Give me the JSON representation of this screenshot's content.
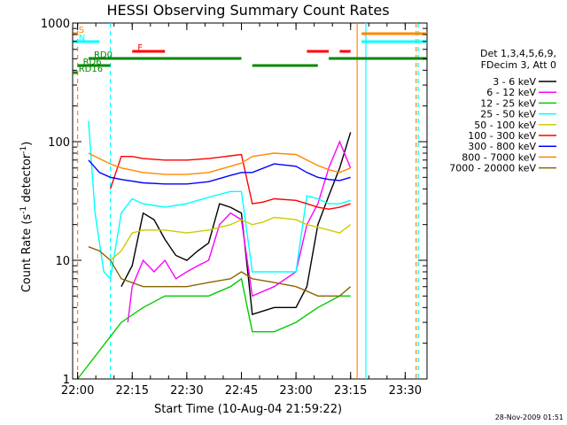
{
  "chart_data": {
    "type": "line",
    "title": "HESSI Observing Summary Count Rates",
    "xlabel": "Start Time (10-Aug-04 21:59:22)",
    "ylabel": "Count Rate (s",
    "ylabel_sup": "-1",
    "ylabel_tail": " detector",
    "ylabel_tail_sup": "-1",
    "ylabel_close": ")",
    "y_scale": "log",
    "ylim": [
      1,
      1000
    ],
    "xlim": [
      21.9772,
      23.6
    ],
    "x_ticks": [
      {
        "t": 22.0,
        "label": "22:00"
      },
      {
        "t": 22.25,
        "label": "22:15"
      },
      {
        "t": 22.5,
        "label": "22:30"
      },
      {
        "t": 22.75,
        "label": "22:45"
      },
      {
        "t": 23.0,
        "label": "23:00"
      },
      {
        "t": 23.25,
        "label": "23:15"
      },
      {
        "t": 23.5,
        "label": "23:30"
      }
    ],
    "y_ticks": [
      {
        "v": 1,
        "label": "1"
      },
      {
        "v": 10,
        "label": "10"
      },
      {
        "v": 100,
        "label": "100"
      },
      {
        "v": 1000,
        "label": "1000"
      }
    ],
    "legend_header": [
      "Det 1,3,4,5,6,9,",
      "FDecim 3, Att 0"
    ],
    "legend_placement": "right",
    "footer": "28-Nov-2009 01:51",
    "series": [
      {
        "name": "3 - 6 keV",
        "color": "#000000",
        "points": [
          [
            22.2,
            6
          ],
          [
            22.25,
            9
          ],
          [
            22.3,
            25
          ],
          [
            22.35,
            22
          ],
          [
            22.4,
            15
          ],
          [
            22.45,
            11
          ],
          [
            22.5,
            10
          ],
          [
            22.55,
            12
          ],
          [
            22.6,
            14
          ],
          [
            22.65,
            30
          ],
          [
            22.7,
            28
          ],
          [
            22.75,
            25
          ],
          [
            22.8,
            3.5
          ],
          [
            22.9,
            4
          ],
          [
            23.0,
            4
          ],
          [
            23.05,
            6
          ],
          [
            23.1,
            20
          ],
          [
            23.15,
            35
          ],
          [
            23.2,
            60
          ],
          [
            23.25,
            120
          ]
        ]
      },
      {
        "name": "6 - 12 keV",
        "color": "#ff00ff",
        "points": [
          [
            22.23,
            3
          ],
          [
            22.25,
            6
          ],
          [
            22.3,
            10
          ],
          [
            22.35,
            8
          ],
          [
            22.4,
            10
          ],
          [
            22.45,
            7
          ],
          [
            22.5,
            8
          ],
          [
            22.55,
            9
          ],
          [
            22.6,
            10
          ],
          [
            22.65,
            20
          ],
          [
            22.7,
            25
          ],
          [
            22.75,
            22
          ],
          [
            22.8,
            5
          ],
          [
            22.9,
            6
          ],
          [
            23.0,
            8
          ],
          [
            23.05,
            20
          ],
          [
            23.1,
            30
          ],
          [
            23.15,
            60
          ],
          [
            23.2,
            100
          ],
          [
            23.25,
            60
          ]
        ]
      },
      {
        "name": "12 - 25 keV",
        "color": "#00cc00",
        "points": [
          [
            22.0,
            1
          ],
          [
            22.2,
            3
          ],
          [
            22.3,
            4
          ],
          [
            22.4,
            5
          ],
          [
            22.5,
            5
          ],
          [
            22.6,
            5
          ],
          [
            22.7,
            6
          ],
          [
            22.75,
            7
          ],
          [
            22.8,
            2.5
          ],
          [
            22.9,
            2.5
          ],
          [
            23.0,
            3
          ],
          [
            23.1,
            4
          ],
          [
            23.2,
            5
          ],
          [
            23.25,
            5
          ]
        ]
      },
      {
        "name": "25 - 50 keV",
        "color": "#00ffff",
        "points": [
          [
            22.05,
            150
          ],
          [
            22.08,
            25
          ],
          [
            22.12,
            8
          ],
          [
            22.15,
            7
          ],
          [
            22.2,
            25
          ],
          [
            22.25,
            33
          ],
          [
            22.3,
            30
          ],
          [
            22.35,
            29
          ],
          [
            22.4,
            28
          ],
          [
            22.45,
            29
          ],
          [
            22.5,
            30
          ],
          [
            22.55,
            32
          ],
          [
            22.6,
            34
          ],
          [
            22.65,
            36
          ],
          [
            22.7,
            38
          ],
          [
            22.75,
            38
          ],
          [
            22.8,
            8
          ],
          [
            22.9,
            8
          ],
          [
            23.0,
            8
          ],
          [
            23.05,
            35
          ],
          [
            23.1,
            33
          ],
          [
            23.15,
            30
          ],
          [
            23.2,
            30
          ],
          [
            23.25,
            32
          ]
        ]
      },
      {
        "name": "50 - 100 keV",
        "color": "#cccc00",
        "points": [
          [
            22.15,
            10
          ],
          [
            22.2,
            12
          ],
          [
            22.25,
            17
          ],
          [
            22.3,
            18
          ],
          [
            22.4,
            18
          ],
          [
            22.5,
            17
          ],
          [
            22.6,
            18
          ],
          [
            22.7,
            20
          ],
          [
            22.75,
            22
          ],
          [
            22.8,
            20
          ],
          [
            22.85,
            21
          ],
          [
            22.9,
            23
          ],
          [
            23.0,
            22
          ],
          [
            23.05,
            20
          ],
          [
            23.1,
            19
          ],
          [
            23.15,
            18
          ],
          [
            23.2,
            17
          ],
          [
            23.25,
            20
          ]
        ]
      },
      {
        "name": "100 - 300 keV",
        "color": "#ff0000",
        "points": [
          [
            22.15,
            40
          ],
          [
            22.2,
            75
          ],
          [
            22.25,
            75
          ],
          [
            22.3,
            72
          ],
          [
            22.4,
            70
          ],
          [
            22.5,
            70
          ],
          [
            22.6,
            72
          ],
          [
            22.7,
            76
          ],
          [
            22.75,
            78
          ],
          [
            22.8,
            30
          ],
          [
            22.85,
            31
          ],
          [
            22.9,
            33
          ],
          [
            23.0,
            32
          ],
          [
            23.05,
            30
          ],
          [
            23.1,
            28
          ],
          [
            23.15,
            27
          ],
          [
            23.2,
            28
          ],
          [
            23.25,
            30
          ]
        ]
      },
      {
        "name": "300 - 800 keV",
        "color": "#0000ff",
        "points": [
          [
            22.05,
            70
          ],
          [
            22.1,
            55
          ],
          [
            22.15,
            50
          ],
          [
            22.2,
            48
          ],
          [
            22.3,
            45
          ],
          [
            22.4,
            44
          ],
          [
            22.5,
            44
          ],
          [
            22.6,
            46
          ],
          [
            22.7,
            52
          ],
          [
            22.75,
            55
          ],
          [
            22.8,
            55
          ],
          [
            22.9,
            65
          ],
          [
            23.0,
            62
          ],
          [
            23.05,
            55
          ],
          [
            23.1,
            50
          ],
          [
            23.15,
            48
          ],
          [
            23.2,
            47
          ],
          [
            23.25,
            50
          ]
        ]
      },
      {
        "name": "800 - 7000 keV",
        "color": "#ff8800",
        "points": [
          [
            22.05,
            80
          ],
          [
            22.1,
            72
          ],
          [
            22.15,
            65
          ],
          [
            22.2,
            60
          ],
          [
            22.3,
            55
          ],
          [
            22.4,
            53
          ],
          [
            22.5,
            53
          ],
          [
            22.6,
            55
          ],
          [
            22.7,
            62
          ],
          [
            22.75,
            66
          ],
          [
            22.8,
            75
          ],
          [
            22.9,
            80
          ],
          [
            23.0,
            78
          ],
          [
            23.05,
            70
          ],
          [
            23.1,
            63
          ],
          [
            23.15,
            58
          ],
          [
            23.2,
            55
          ],
          [
            23.25,
            60
          ]
        ]
      },
      {
        "name": "7000 - 20000 keV",
        "color": "#886600",
        "points": [
          [
            22.05,
            13
          ],
          [
            22.1,
            12
          ],
          [
            22.15,
            10
          ],
          [
            22.2,
            7
          ],
          [
            22.3,
            6
          ],
          [
            22.4,
            6
          ],
          [
            22.5,
            6
          ],
          [
            22.6,
            6.5
          ],
          [
            22.7,
            7
          ],
          [
            22.75,
            8
          ],
          [
            22.8,
            7
          ],
          [
            22.9,
            6.5
          ],
          [
            23.0,
            6
          ],
          [
            23.05,
            5.5
          ],
          [
            23.1,
            5
          ],
          [
            23.15,
            5
          ],
          [
            23.2,
            5
          ],
          [
            23.25,
            6
          ]
        ]
      }
    ],
    "flags": [
      {
        "label": "S",
        "color": "#ff8800",
        "y": 38,
        "segments": [
          [
            21.98,
            22.0
          ],
          [
            23.3,
            23.6
          ]
        ]
      },
      {
        "label": "N",
        "color": "#00ffff",
        "y": 47,
        "segments": [
          [
            21.98,
            22.1
          ],
          [
            23.3,
            23.6
          ]
        ]
      },
      {
        "label": "F",
        "color": "#ff0000",
        "y": 58,
        "segments": [
          [
            22.25,
            22.4
          ],
          [
            23.05,
            23.15
          ],
          [
            23.2,
            23.25
          ]
        ]
      },
      {
        "label": "RD0",
        "color": "#008800",
        "y": 66,
        "segments": [
          [
            22.05,
            22.75
          ],
          [
            23.15,
            23.6
          ]
        ]
      },
      {
        "label": "RD6",
        "color": "#008800",
        "y": 74,
        "segments": [
          [
            22.0,
            22.15
          ],
          [
            22.8,
            23.1
          ]
        ]
      },
      {
        "label": "RD16",
        "color": "#008800",
        "y": 82,
        "segments": [
          [
            21.98,
            22.0
          ]
        ]
      }
    ],
    "vlines": [
      {
        "t": 22.0,
        "color": "#ff8800",
        "dash": true
      },
      {
        "t": 22.15,
        "color": "#00ffff",
        "dash": true
      },
      {
        "t": 23.28,
        "color": "#ff8800",
        "dash": false
      },
      {
        "t": 23.32,
        "color": "#00ffff",
        "dash": false
      },
      {
        "t": 23.55,
        "color": "#ff8800",
        "dash": true
      },
      {
        "t": 23.56,
        "color": "#00ffff",
        "dash": true
      }
    ]
  }
}
